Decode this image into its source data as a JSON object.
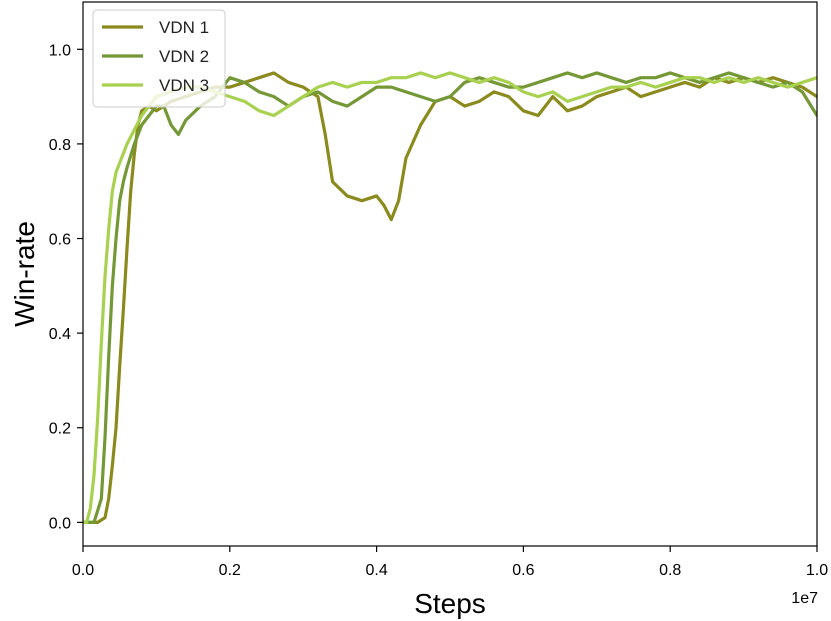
{
  "chart_data": {
    "type": "line",
    "title": "",
    "xlabel": "Steps",
    "ylabel": "Win-rate",
    "x_offset_label": "1e7",
    "xlim": [
      0.0,
      1.0
    ],
    "ylim": [
      -0.05,
      1.1
    ],
    "grid": false,
    "legend_position": "top-left",
    "x_ticks": [
      {
        "value": 0.0,
        "label": "0.0"
      },
      {
        "value": 0.2,
        "label": "0.2"
      },
      {
        "value": 0.4,
        "label": "0.4"
      },
      {
        "value": 0.6,
        "label": "0.6"
      },
      {
        "value": 0.8,
        "label": "0.8"
      },
      {
        "value": 1.0,
        "label": "1.0"
      }
    ],
    "y_ticks": [
      {
        "value": 0.0,
        "label": "0.0"
      },
      {
        "value": 0.2,
        "label": "0.2"
      },
      {
        "value": 0.4,
        "label": "0.4"
      },
      {
        "value": 0.6,
        "label": "0.6"
      },
      {
        "value": 0.8,
        "label": "0.8"
      },
      {
        "value": 1.0,
        "label": "1.0"
      }
    ],
    "series": [
      {
        "name": "VDN 1",
        "color": "#8b8a1c",
        "x": [
          0.0,
          0.02,
          0.03,
          0.035,
          0.04,
          0.045,
          0.05,
          0.055,
          0.06,
          0.065,
          0.07,
          0.075,
          0.08,
          0.09,
          0.1,
          0.12,
          0.14,
          0.16,
          0.18,
          0.2,
          0.22,
          0.24,
          0.26,
          0.28,
          0.3,
          0.32,
          0.33,
          0.34,
          0.36,
          0.38,
          0.4,
          0.41,
          0.42,
          0.43,
          0.44,
          0.46,
          0.48,
          0.5,
          0.52,
          0.54,
          0.56,
          0.58,
          0.6,
          0.62,
          0.64,
          0.66,
          0.68,
          0.7,
          0.72,
          0.74,
          0.76,
          0.78,
          0.8,
          0.82,
          0.84,
          0.86,
          0.88,
          0.9,
          0.92,
          0.94,
          0.96,
          0.98,
          1.0
        ],
        "y": [
          0.0,
          0.0,
          0.01,
          0.05,
          0.12,
          0.2,
          0.33,
          0.45,
          0.58,
          0.7,
          0.78,
          0.84,
          0.87,
          0.88,
          0.87,
          0.89,
          0.9,
          0.91,
          0.92,
          0.92,
          0.93,
          0.94,
          0.95,
          0.93,
          0.92,
          0.9,
          0.82,
          0.72,
          0.69,
          0.68,
          0.69,
          0.67,
          0.64,
          0.68,
          0.77,
          0.84,
          0.89,
          0.9,
          0.88,
          0.89,
          0.91,
          0.9,
          0.87,
          0.86,
          0.9,
          0.87,
          0.88,
          0.9,
          0.91,
          0.92,
          0.9,
          0.91,
          0.92,
          0.93,
          0.92,
          0.94,
          0.93,
          0.94,
          0.93,
          0.94,
          0.93,
          0.92,
          0.9
        ]
      },
      {
        "name": "VDN 2",
        "color": "#749836",
        "x": [
          0.0,
          0.015,
          0.025,
          0.03,
          0.035,
          0.04,
          0.045,
          0.05,
          0.055,
          0.06,
          0.07,
          0.08,
          0.09,
          0.1,
          0.11,
          0.12,
          0.13,
          0.14,
          0.16,
          0.18,
          0.2,
          0.22,
          0.24,
          0.26,
          0.28,
          0.3,
          0.32,
          0.34,
          0.36,
          0.38,
          0.4,
          0.42,
          0.44,
          0.46,
          0.48,
          0.5,
          0.52,
          0.54,
          0.56,
          0.58,
          0.6,
          0.62,
          0.64,
          0.66,
          0.68,
          0.7,
          0.72,
          0.74,
          0.76,
          0.78,
          0.8,
          0.82,
          0.84,
          0.86,
          0.88,
          0.9,
          0.92,
          0.94,
          0.96,
          0.98,
          1.0
        ],
        "y": [
          0.0,
          0.0,
          0.05,
          0.18,
          0.35,
          0.5,
          0.6,
          0.68,
          0.72,
          0.75,
          0.8,
          0.84,
          0.86,
          0.88,
          0.88,
          0.84,
          0.82,
          0.85,
          0.88,
          0.9,
          0.94,
          0.93,
          0.91,
          0.9,
          0.88,
          0.9,
          0.91,
          0.89,
          0.88,
          0.9,
          0.92,
          0.92,
          0.91,
          0.9,
          0.89,
          0.9,
          0.93,
          0.94,
          0.93,
          0.92,
          0.92,
          0.93,
          0.94,
          0.95,
          0.94,
          0.95,
          0.94,
          0.93,
          0.94,
          0.94,
          0.95,
          0.94,
          0.93,
          0.94,
          0.95,
          0.94,
          0.93,
          0.92,
          0.93,
          0.91,
          0.86
        ]
      },
      {
        "name": "VDN 3",
        "color": "#a8d14f",
        "x": [
          0.0,
          0.005,
          0.01,
          0.015,
          0.02,
          0.025,
          0.03,
          0.035,
          0.04,
          0.045,
          0.05,
          0.055,
          0.06,
          0.07,
          0.08,
          0.09,
          0.1,
          0.12,
          0.14,
          0.16,
          0.18,
          0.2,
          0.22,
          0.24,
          0.26,
          0.28,
          0.3,
          0.32,
          0.34,
          0.36,
          0.38,
          0.4,
          0.42,
          0.44,
          0.46,
          0.48,
          0.5,
          0.52,
          0.54,
          0.56,
          0.58,
          0.6,
          0.62,
          0.64,
          0.66,
          0.68,
          0.7,
          0.72,
          0.74,
          0.76,
          0.78,
          0.8,
          0.82,
          0.84,
          0.86,
          0.88,
          0.9,
          0.92,
          0.94,
          0.96,
          0.98,
          1.0
        ],
        "y": [
          0.0,
          0.0,
          0.03,
          0.1,
          0.22,
          0.38,
          0.52,
          0.62,
          0.7,
          0.74,
          0.76,
          0.78,
          0.8,
          0.83,
          0.86,
          0.88,
          0.9,
          0.91,
          0.92,
          0.92,
          0.91,
          0.9,
          0.89,
          0.87,
          0.86,
          0.88,
          0.9,
          0.92,
          0.93,
          0.92,
          0.93,
          0.93,
          0.94,
          0.94,
          0.95,
          0.94,
          0.95,
          0.94,
          0.93,
          0.94,
          0.93,
          0.91,
          0.9,
          0.91,
          0.89,
          0.9,
          0.91,
          0.92,
          0.92,
          0.93,
          0.92,
          0.93,
          0.94,
          0.94,
          0.93,
          0.94,
          0.93,
          0.94,
          0.93,
          0.92,
          0.93,
          0.94
        ]
      }
    ]
  }
}
